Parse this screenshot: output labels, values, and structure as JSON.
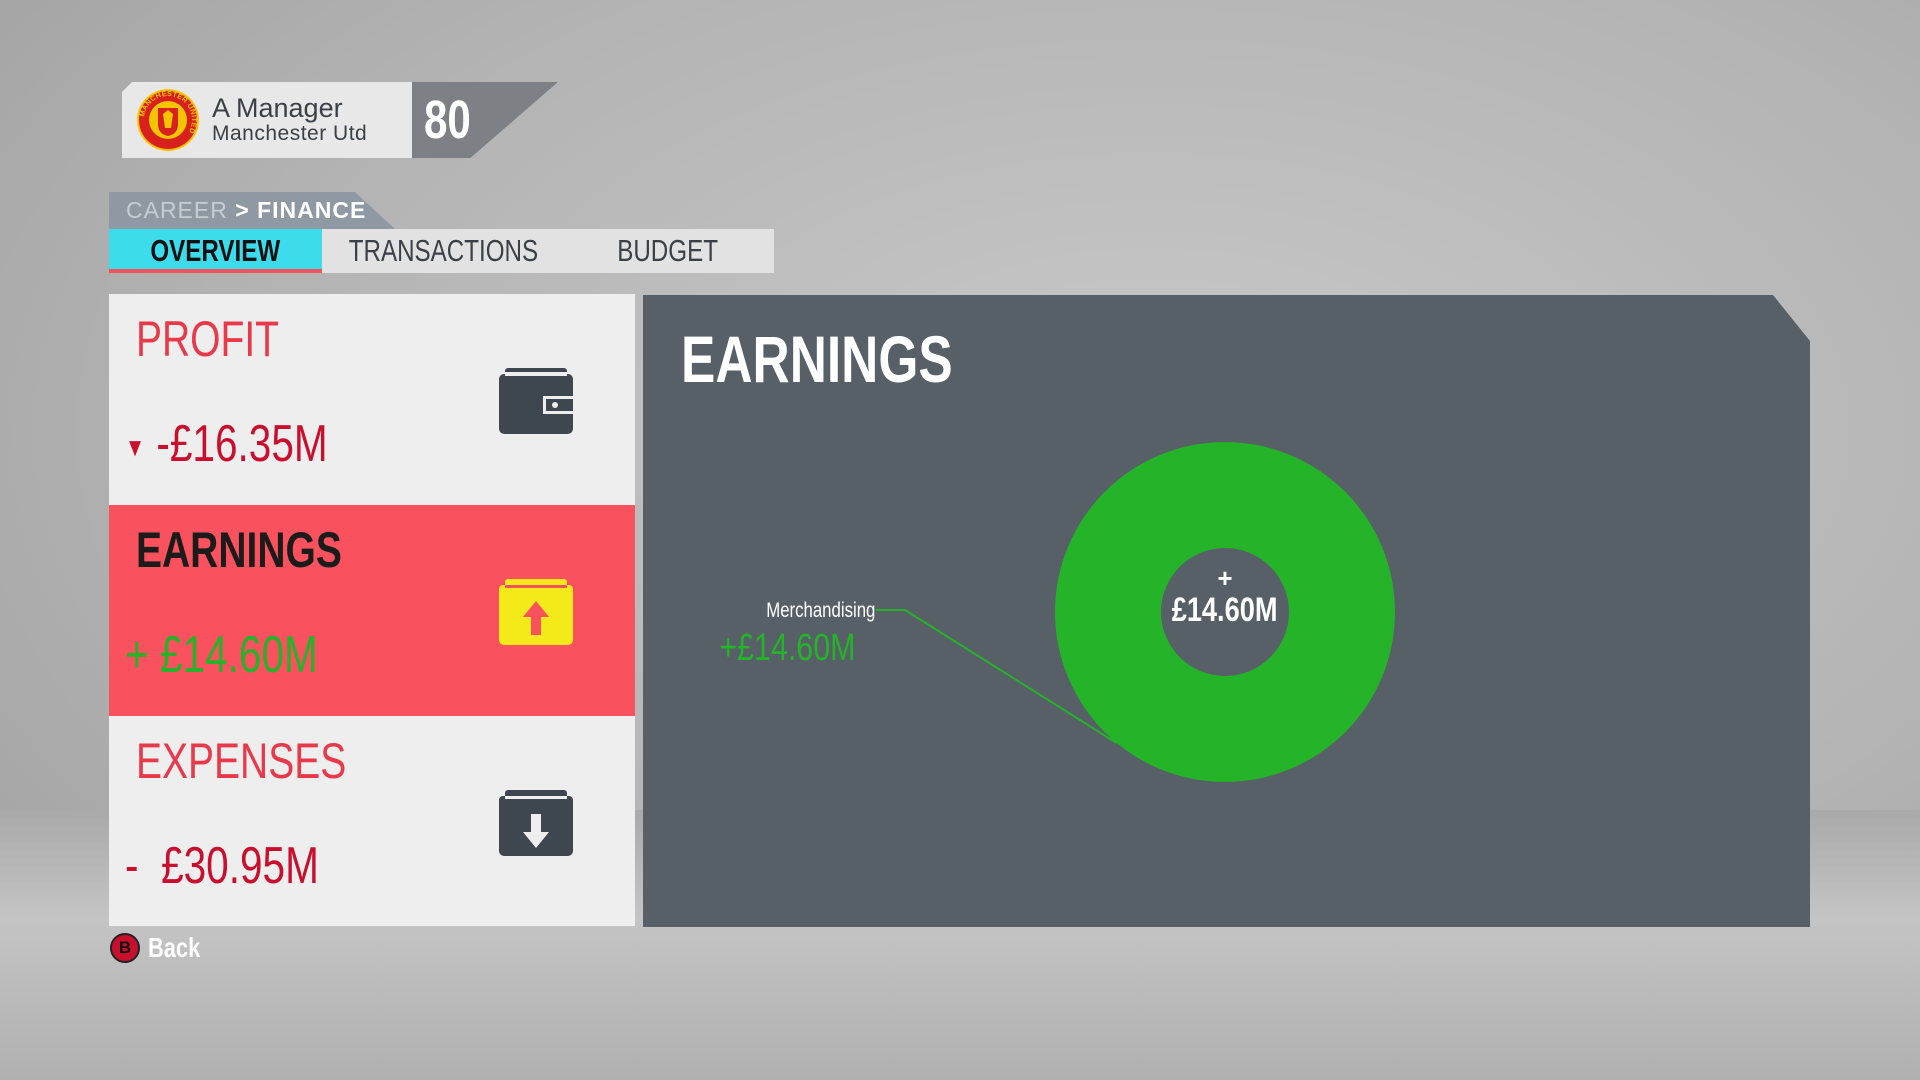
{
  "header": {
    "manager_name": "A Manager",
    "club": "Manchester Utd",
    "rating": "80",
    "crest_text": "MANCHESTER UNITED"
  },
  "breadcrumb": {
    "parent": "CAREER",
    "separator": ">",
    "current": "FINANCE"
  },
  "tabs": [
    {
      "label": "OVERVIEW",
      "active": true
    },
    {
      "label": "TRANSACTIONS",
      "active": false
    },
    {
      "label": "BUDGET",
      "active": false
    }
  ],
  "summary": [
    {
      "label": "PROFIT",
      "value": "-£16.35M",
      "prefix": "▼",
      "icon": "wallet-icon",
      "selected": false
    },
    {
      "label": "EARNINGS",
      "value": "£14.60M",
      "prefix": "+",
      "icon": "upload-box-icon",
      "selected": true
    },
    {
      "label": "EXPENSES",
      "value": "£30.95M",
      "prefix": "-",
      "icon": "download-box-icon",
      "selected": false
    }
  ],
  "panel": {
    "title": "EARNINGS"
  },
  "chart_data": {
    "type": "pie",
    "donut": true,
    "slices": [
      {
        "label": "Merchandising",
        "value": 14.6,
        "display": "+£14.60M",
        "color": "#25b32a"
      }
    ],
    "center_prefix": "+",
    "center_label": "£14.60M"
  },
  "footer": {
    "back_button": "B",
    "back_label": "Back"
  },
  "colors": {
    "accent": "#3ddcec",
    "selected": "#fa515e",
    "negative": "#c8102e",
    "positive": "#25b32a",
    "panel": "#575f67"
  }
}
